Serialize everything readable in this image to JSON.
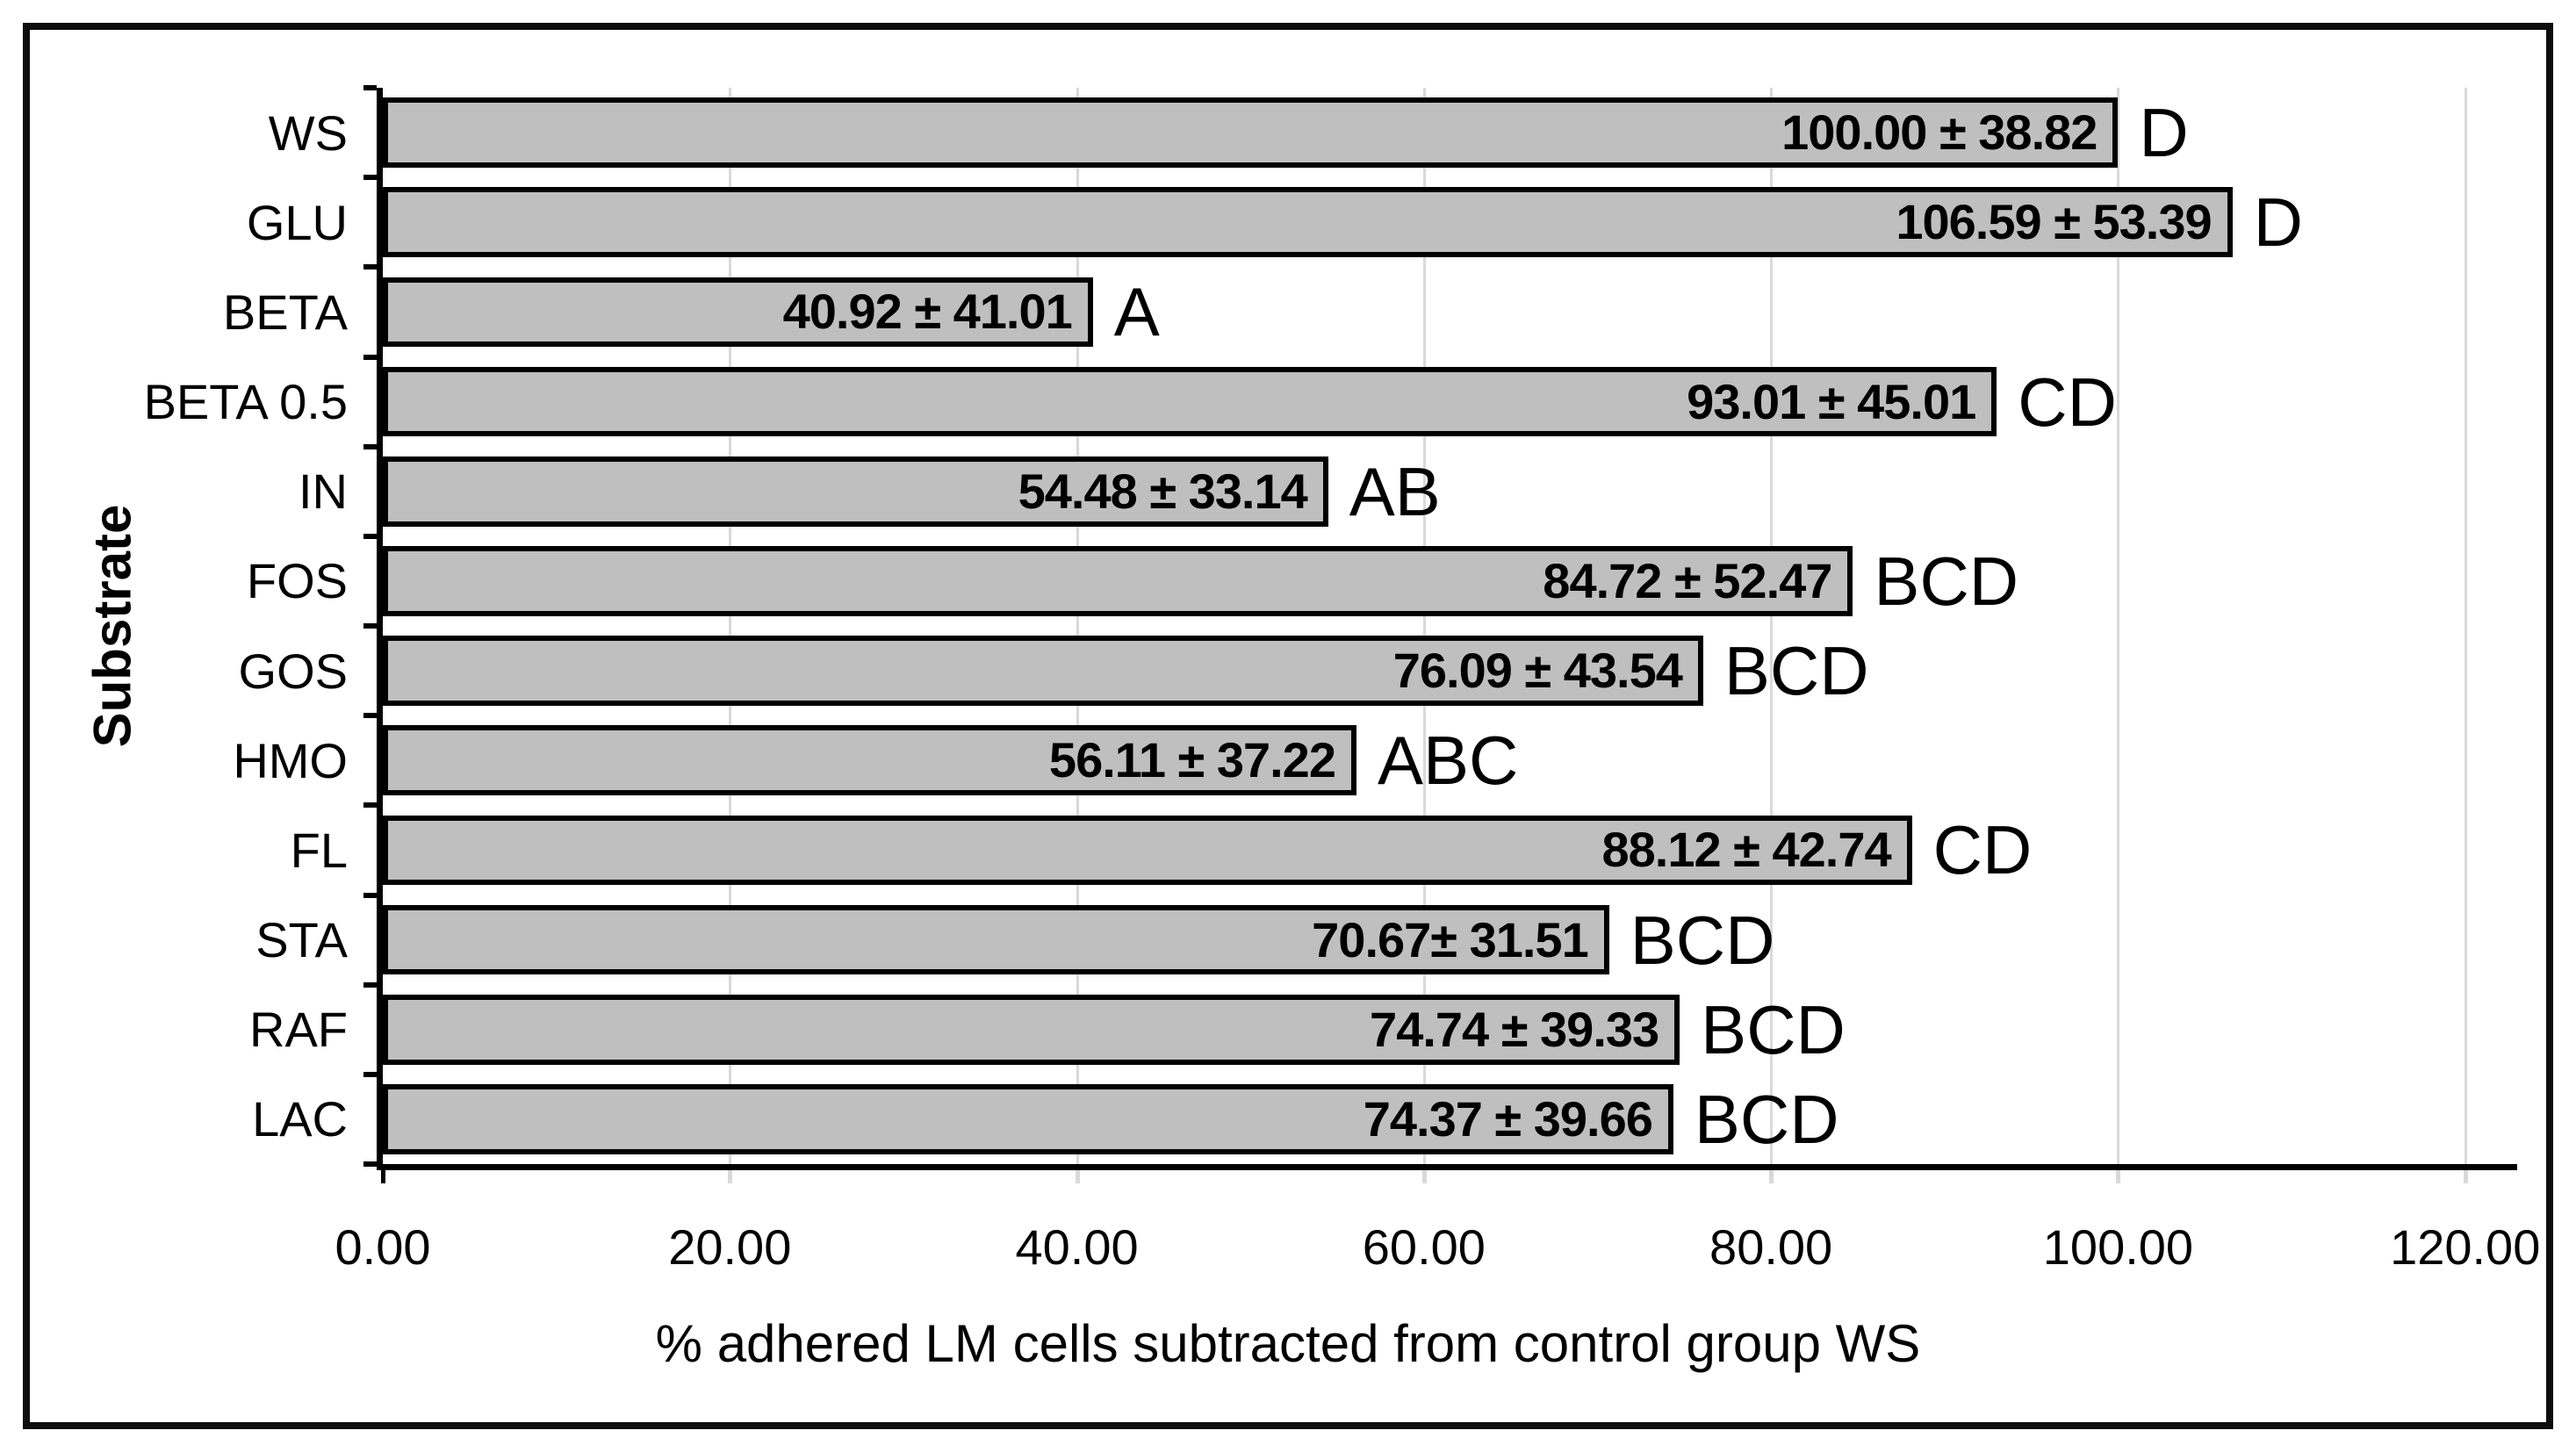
{
  "figure": {
    "background": "#ffffff",
    "frame_border_color": "#0d0d0d"
  },
  "chart_data": {
    "type": "bar",
    "orientation": "horizontal",
    "xlabel": "% adhered LM cells subtracted from control group WS",
    "ylabel": "Substrate",
    "xlim": [
      0,
      123
    ],
    "xticks": [
      0,
      20,
      40,
      60,
      80,
      100,
      120
    ],
    "xtick_labels": [
      "0.00",
      "20.00",
      "40.00",
      "60.00",
      "80.00",
      "100.00",
      "120.00"
    ],
    "grid": "vertical-major",
    "legend": "none",
    "bar_color": "#bfbfbf",
    "bar_border_color": "#000000",
    "gridline_color": "#d9d9d9",
    "categories": [
      "WS",
      "GLU",
      "BETA",
      "BETA 0.5",
      "IN",
      "FOS",
      "GOS",
      "HMO",
      "FL",
      "STA",
      "RAF",
      "LAC"
    ],
    "values": [
      100.0,
      106.59,
      40.92,
      93.01,
      54.48,
      84.72,
      76.09,
      56.11,
      88.12,
      70.67,
      74.74,
      74.37
    ],
    "errors": [
      38.82,
      53.39,
      41.01,
      45.01,
      33.14,
      52.47,
      43.54,
      37.22,
      42.74,
      31.51,
      39.33,
      39.66
    ],
    "value_labels": [
      "100.00 ± 38.82",
      "106.59 ± 53.39",
      "40.92 ± 41.01",
      "93.01 ± 45.01",
      "54.48 ± 33.14",
      "84.72 ± 52.47",
      "76.09 ± 43.54",
      "56.11 ± 37.22",
      "88.12 ± 42.74",
      "70.67± 31.51",
      "74.74 ± 39.33",
      "74.37 ± 39.66"
    ],
    "significance_labels": [
      "D",
      "D",
      "A",
      "CD",
      "AB",
      "BCD",
      "BCD",
      "ABC",
      "CD",
      "BCD",
      "BCD",
      "BCD"
    ]
  }
}
